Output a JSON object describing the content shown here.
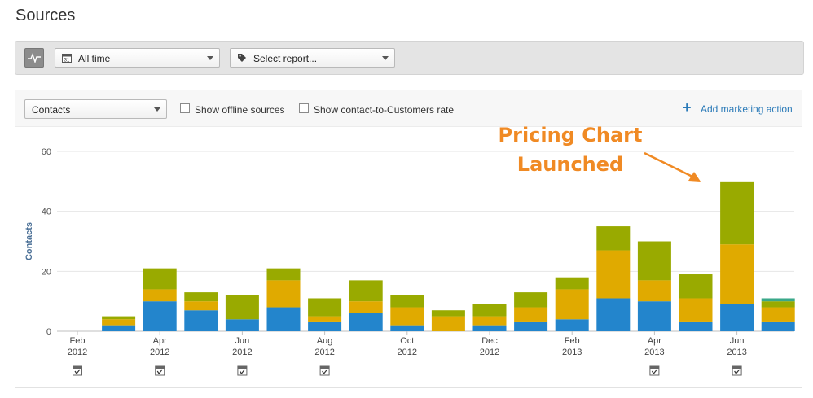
{
  "page": {
    "title": "Sources"
  },
  "toolbar": {
    "date_range": {
      "value": "All time",
      "icon": "calendar-icon"
    },
    "report": {
      "placeholder": "Select report...",
      "icon": "tag-icon"
    },
    "pulse_icon": "pulse-icon"
  },
  "panel": {
    "metric_select": "Contacts",
    "show_offline_label": "Show offline sources",
    "show_rate_label": "Show contact-to-Customers rate",
    "add_action_label": "Add marketing action"
  },
  "annotation": {
    "line1": "Pricing Chart",
    "line2": "Launched",
    "color": "#f08a24"
  },
  "chart_data": {
    "type": "bar",
    "stacked": true,
    "ylabel": "Contacts",
    "ylim": [
      0,
      60
    ],
    "yticks": [
      0,
      20,
      40,
      60
    ],
    "grid": true,
    "colors": [
      "#2385cc",
      "#e0aa00",
      "#99aa00",
      "#3aa88a"
    ],
    "categories": [
      "Feb 2012",
      "Mar 2012",
      "Apr 2012",
      "May 2012",
      "Jun 2012",
      "Jul 2012",
      "Aug 2012",
      "Sep 2012",
      "Oct 2012",
      "Nov 2012",
      "Dec 2012",
      "Jan 2013",
      "Feb 2013",
      "Mar 2013",
      "Apr 2013",
      "May 2013",
      "Jun 2013",
      "Jul 2013"
    ],
    "series": [
      {
        "values": [
          0,
          2,
          10,
          7,
          4,
          8,
          3,
          6,
          2,
          0,
          2,
          3,
          4,
          11,
          10,
          3,
          9,
          3
        ]
      },
      {
        "values": [
          0,
          2,
          4,
          3,
          0,
          9,
          2,
          4,
          6,
          5,
          3,
          5,
          10,
          16,
          7,
          8,
          20,
          5
        ]
      },
      {
        "values": [
          0,
          1,
          7,
          3,
          8,
          4,
          6,
          7,
          4,
          2,
          4,
          5,
          4,
          8,
          13,
          8,
          21,
          2
        ]
      },
      {
        "values": [
          0,
          0,
          0,
          0,
          0,
          0,
          0,
          0,
          0,
          0,
          0,
          0,
          0,
          0,
          0,
          0,
          0,
          1
        ]
      }
    ],
    "x_tick_labels": [
      {
        "month": "Feb",
        "year": "2012",
        "index": 0,
        "marker": true
      },
      {
        "month": "Apr",
        "year": "2012",
        "index": 2,
        "marker": true
      },
      {
        "month": "Jun",
        "year": "2012",
        "index": 4,
        "marker": true
      },
      {
        "month": "Aug",
        "year": "2012",
        "index": 6,
        "marker": true
      },
      {
        "month": "Oct",
        "year": "2012",
        "index": 8,
        "marker": false
      },
      {
        "month": "Dec",
        "year": "2012",
        "index": 10,
        "marker": false
      },
      {
        "month": "Feb",
        "year": "2013",
        "index": 12,
        "marker": false
      },
      {
        "month": "Apr",
        "year": "2013",
        "index": 14,
        "marker": true
      },
      {
        "month": "Jun",
        "year": "2013",
        "index": 16,
        "marker": true
      }
    ]
  }
}
